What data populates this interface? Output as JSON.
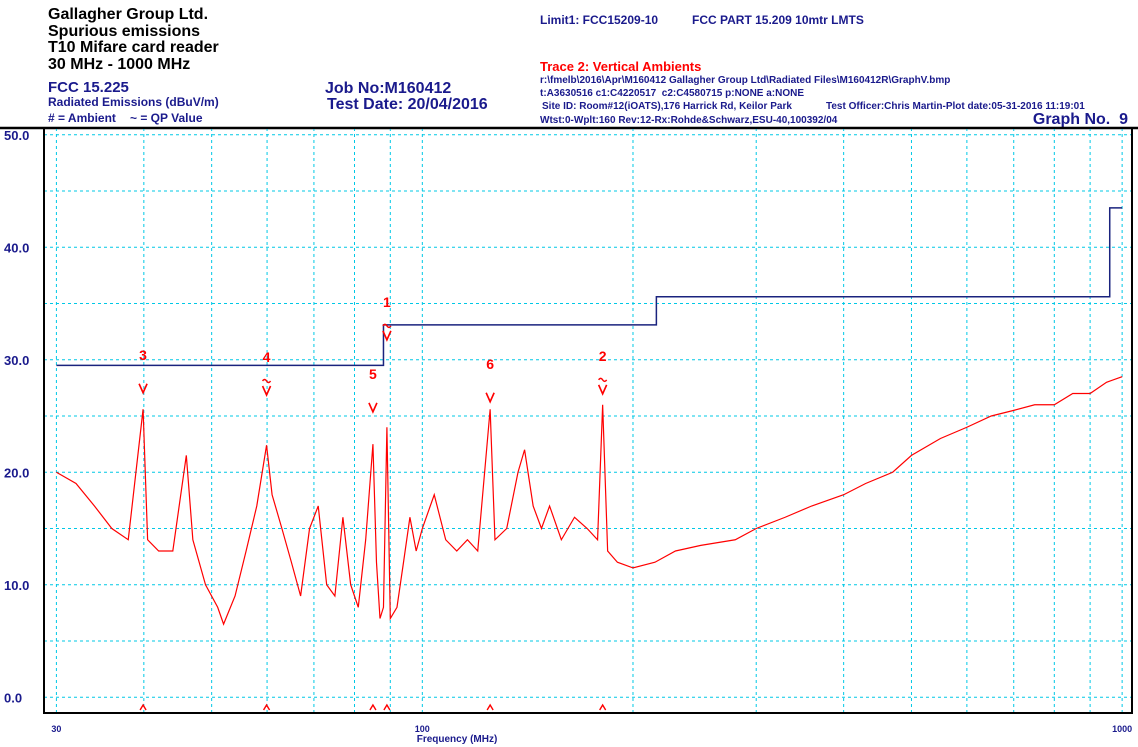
{
  "header": {
    "company": "Gallagher Group Ltd.",
    "test": "Spurious emissions",
    "device": "T10 Mifare card reader",
    "range": "30 MHz - 1000 MHz",
    "standard": "FCC 15.225",
    "units": "Radiated Emissions (dBuV/m)",
    "ambient_key": "# = Ambient",
    "qp_key": "~ = QP Value",
    "job": "Job No:M160412",
    "date": "Test Date: 20/04/2016",
    "limit_id": "Limit1: FCC15209-10",
    "limit_name": "FCC PART 15.209 10mtr LMTS",
    "trace": "Trace 2: Vertical Ambients",
    "file": "r:\\fmelb\\2016\\Apr\\M160412 Gallagher Group Ltd\\Radiated Files\\M160412R\\GraphV.bmp",
    "cal": "t:A3630516 c1:C4220517  c2:C4580715 p:NONE a:NONE",
    "site": "Site ID: Room#12(iOATS),176 Harrick Rd, Keilor Park",
    "officer": "Test Officer:Chris Martin-Plot date:05-31-2016 11:19:01",
    "equipment": "Wtst:0-Wplt:160 Rev:12-Rx:Rohde&Schwarz,ESU-40,100392/04",
    "graph": "Graph No.  9"
  },
  "chart_data": {
    "type": "line",
    "x_label": "Frequency (MHz)",
    "xscale": "log",
    "xlim": [
      28.8,
      1033
    ],
    "ylim": [
      -1.4,
      50.6
    ],
    "xticks": [
      30,
      100,
      1000
    ],
    "yticks": [
      {
        "value": 0,
        "label": "0.0"
      },
      {
        "value": 10,
        "label": "10.0"
      },
      {
        "value": 20,
        "label": "20.0"
      },
      {
        "value": 30,
        "label": "30.0"
      },
      {
        "value": 40,
        "label": "40.0"
      },
      {
        "value": 50,
        "label": "50.0"
      }
    ],
    "x_minor_grid": [
      40,
      50,
      60,
      70,
      80,
      90,
      200,
      300,
      400,
      500,
      600,
      700,
      800,
      900
    ],
    "y_minor_grid": [
      5,
      15,
      25,
      35,
      45
    ],
    "grid": true,
    "grid_color": "#00c8e6",
    "series": [
      {
        "color": "#1a237e",
        "x": [
          30,
          88,
          88,
          216,
          216,
          960,
          960,
          1000
        ],
        "values": [
          29.5,
          29.5,
          33.1,
          33.1,
          35.6,
          35.6,
          43.5,
          43.5
        ]
      },
      {
        "color": "#ff0000",
        "x": [
          30,
          32,
          34,
          36,
          38,
          39.9,
          40.5,
          42,
          44,
          46,
          47,
          49,
          51,
          52,
          54,
          56,
          58,
          59.9,
          61,
          63,
          65,
          67,
          69,
          71,
          73,
          75,
          77,
          79,
          81,
          83,
          85,
          86,
          87,
          88,
          89,
          90,
          92,
          94,
          96,
          98,
          100,
          104,
          108,
          112,
          116,
          120,
          125,
          127,
          132,
          137,
          140,
          144,
          148,
          152,
          158,
          165,
          172,
          178,
          181,
          184,
          190,
          200,
          215,
          230,
          250,
          280,
          300,
          330,
          360,
          400,
          430,
          470,
          500,
          550,
          600,
          650,
          700,
          750,
          800,
          850,
          900,
          950,
          1000
        ],
        "values": [
          20,
          19,
          17,
          15,
          14,
          25.6,
          14,
          13,
          13,
          21.5,
          14,
          10,
          8,
          6.5,
          9,
          13,
          17,
          22.4,
          18,
          15,
          12,
          9,
          15,
          17,
          10,
          9,
          16,
          10,
          8,
          14,
          22.5,
          12,
          7,
          8,
          24,
          7,
          8,
          12,
          16,
          13,
          15,
          18,
          14,
          13,
          14,
          13,
          25.6,
          14,
          15,
          20,
          22,
          17,
          15,
          17,
          14,
          16,
          15,
          14,
          26,
          13,
          12,
          11.5,
          12,
          13,
          13.5,
          14,
          15,
          16,
          17,
          18,
          19,
          20,
          21.5,
          23,
          24,
          25,
          25.5,
          26,
          26,
          27,
          27,
          28,
          28.5
        ]
      }
    ],
    "markers": [
      {
        "label": "3",
        "x": 39.9,
        "value": 26.8,
        "qp": false
      },
      {
        "label": "4",
        "x": 59.9,
        "value": 26.6,
        "qp": true
      },
      {
        "label": "5",
        "x": 85,
        "value": 25.1,
        "qp": false
      },
      {
        "label": "1",
        "x": 89,
        "value": 31.5,
        "qp": true
      },
      {
        "label": "6",
        "x": 125,
        "value": 26,
        "qp": false
      },
      {
        "label": "2",
        "x": 181,
        "value": 26.7,
        "qp": true
      }
    ],
    "marker_color": "#ff0000"
  }
}
